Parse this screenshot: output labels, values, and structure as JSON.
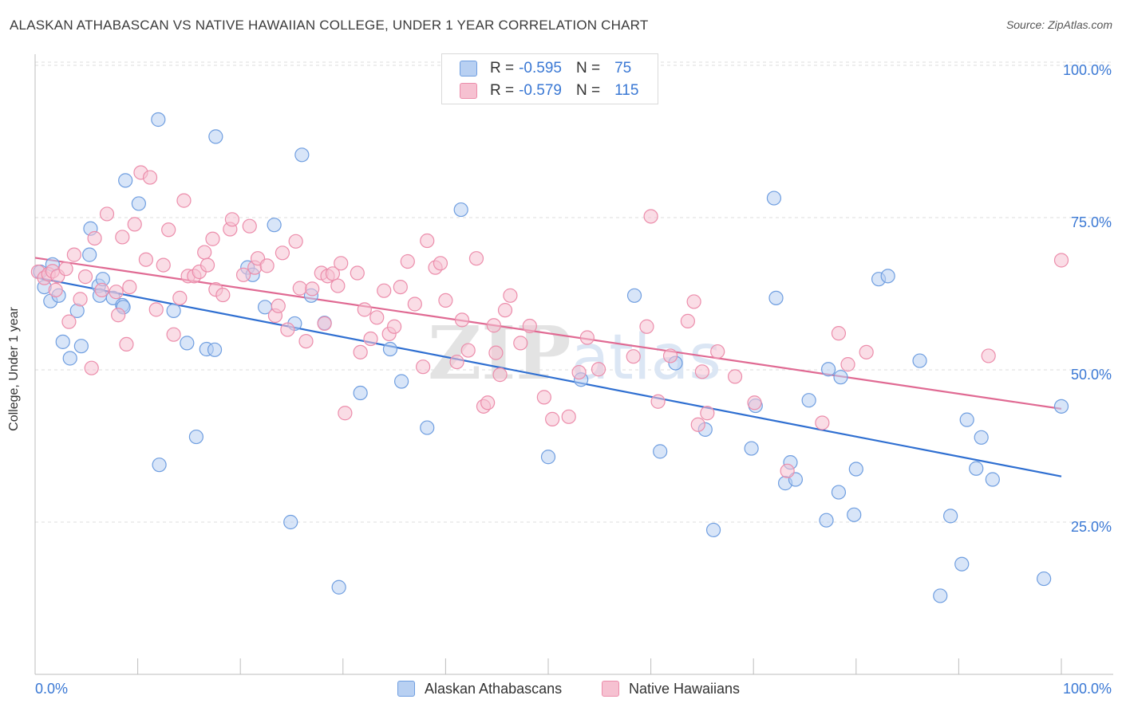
{
  "title": "ALASKAN ATHABASCAN VS NATIVE HAWAIIAN COLLEGE, UNDER 1 YEAR CORRELATION CHART",
  "source": "Source: ZipAtlas.com",
  "watermark": "ZIPatlas",
  "legend": {
    "r_label": "R =",
    "n_label": "N =",
    "rows": [
      {
        "r": "-0.595",
        "n": "75"
      },
      {
        "r": "-0.579",
        "n": "115"
      }
    ]
  },
  "colors": {
    "blue_fill": "#b8d0f2",
    "blue_stroke": "#6f9ee0",
    "blue_line": "#2f6fd1",
    "pink_fill": "#f6c1d1",
    "pink_stroke": "#ec8dab",
    "pink_line": "#e06a93",
    "tick_text": "#3a78d4",
    "grid": "#dcdcdc"
  },
  "chart_data": {
    "type": "scatter",
    "title": "ALASKAN ATHABASCAN VS NATIVE HAWAIIAN COLLEGE, UNDER 1 YEAR CORRELATION CHART",
    "xlabel": "",
    "ylabel": "College, Under 1 year",
    "xlim": [
      0,
      100
    ],
    "ylim": [
      0,
      102
    ],
    "x_tick_labels": [
      "0.0%",
      "100.0%"
    ],
    "y_ticks": [
      25,
      50,
      75,
      100
    ],
    "y_tick_labels": [
      "25.0%",
      "50.0%",
      "75.0%",
      "100.0%"
    ],
    "grid": true,
    "legend_position": "bottom-center",
    "series": [
      {
        "name": "Alaskan Athabascans",
        "color": "#6f9ee0",
        "trend": {
          "x": [
            0,
            100
          ],
          "y": [
            65.2,
            32.5
          ]
        },
        "points": [
          [
            0.5,
            66.1
          ],
          [
            0.9,
            63.6
          ],
          [
            1.5,
            61.3
          ],
          [
            1.7,
            67.3
          ],
          [
            2.3,
            62.2
          ],
          [
            2.7,
            54.6
          ],
          [
            3.4,
            51.9
          ],
          [
            4.1,
            59.7
          ],
          [
            4.5,
            53.9
          ],
          [
            5.3,
            68.9
          ],
          [
            5.4,
            73.2
          ],
          [
            6.2,
            63.8
          ],
          [
            6.3,
            62.2
          ],
          [
            6.6,
            64.9
          ],
          [
            7.6,
            61.8
          ],
          [
            8.5,
            60.6
          ],
          [
            8.6,
            60.3
          ],
          [
            8.8,
            81.1
          ],
          [
            10.1,
            77.3
          ],
          [
            12.0,
            91.1
          ],
          [
            12.1,
            34.4
          ],
          [
            13.5,
            59.7
          ],
          [
            14.8,
            54.4
          ],
          [
            15.7,
            39.0
          ],
          [
            16.7,
            53.4
          ],
          [
            17.5,
            53.3
          ],
          [
            17.6,
            88.3
          ],
          [
            20.7,
            66.8
          ],
          [
            21.2,
            65.6
          ],
          [
            22.4,
            60.3
          ],
          [
            23.3,
            73.8
          ],
          [
            24.9,
            25.0
          ],
          [
            25.3,
            57.6
          ],
          [
            26.0,
            85.3
          ],
          [
            26.9,
            62.2
          ],
          [
            28.2,
            57.7
          ],
          [
            29.6,
            14.3
          ],
          [
            31.7,
            46.2
          ],
          [
            34.6,
            53.4
          ],
          [
            35.7,
            48.1
          ],
          [
            38.2,
            40.5
          ],
          [
            41.5,
            76.3
          ],
          [
            50.0,
            35.7
          ],
          [
            53.2,
            48.4
          ],
          [
            58.4,
            62.2
          ],
          [
            60.9,
            36.6
          ],
          [
            62.4,
            51.1
          ],
          [
            65.3,
            40.2
          ],
          [
            66.1,
            23.7
          ],
          [
            69.8,
            37.1
          ],
          [
            70.2,
            44.1
          ],
          [
            72.0,
            78.2
          ],
          [
            72.2,
            61.8
          ],
          [
            73.1,
            31.4
          ],
          [
            73.6,
            34.8
          ],
          [
            74.1,
            32.0
          ],
          [
            75.4,
            45.0
          ],
          [
            77.1,
            25.3
          ],
          [
            77.3,
            50.1
          ],
          [
            78.3,
            29.9
          ],
          [
            78.5,
            48.8
          ],
          [
            79.8,
            26.2
          ],
          [
            80.0,
            33.7
          ],
          [
            82.2,
            64.9
          ],
          [
            83.1,
            65.4
          ],
          [
            86.2,
            51.5
          ],
          [
            88.2,
            12.9
          ],
          [
            89.2,
            26.0
          ],
          [
            90.3,
            18.1
          ],
          [
            90.8,
            41.8
          ],
          [
            91.7,
            33.8
          ],
          [
            92.2,
            38.9
          ],
          [
            93.3,
            32.0
          ],
          [
            98.3,
            15.7
          ],
          [
            100.0,
            44.0
          ]
        ]
      },
      {
        "name": "Native Hawaiians",
        "color": "#ec8dab",
        "trend": {
          "x": [
            0,
            100
          ],
          "y": [
            68.4,
            43.6
          ]
        },
        "points": [
          [
            0.3,
            66.1
          ],
          [
            0.9,
            65.1
          ],
          [
            1.3,
            65.7
          ],
          [
            1.7,
            66.2
          ],
          [
            2.0,
            63.1
          ],
          [
            2.2,
            65.4
          ],
          [
            3.0,
            66.6
          ],
          [
            3.3,
            57.9
          ],
          [
            3.8,
            68.9
          ],
          [
            4.4,
            61.6
          ],
          [
            4.9,
            65.3
          ],
          [
            5.5,
            50.3
          ],
          [
            5.8,
            71.6
          ],
          [
            6.5,
            63.1
          ],
          [
            7.0,
            75.6
          ],
          [
            7.9,
            62.8
          ],
          [
            8.1,
            59.0
          ],
          [
            8.5,
            71.8
          ],
          [
            8.9,
            54.2
          ],
          [
            9.2,
            63.6
          ],
          [
            9.7,
            73.9
          ],
          [
            10.3,
            82.4
          ],
          [
            10.8,
            68.1
          ],
          [
            11.2,
            81.6
          ],
          [
            11.8,
            59.9
          ],
          [
            12.5,
            67.2
          ],
          [
            13.0,
            73.0
          ],
          [
            13.5,
            55.8
          ],
          [
            14.1,
            61.8
          ],
          [
            14.5,
            77.8
          ],
          [
            14.9,
            65.4
          ],
          [
            15.5,
            65.4
          ],
          [
            16.0,
            66.1
          ],
          [
            16.5,
            69.3
          ],
          [
            16.8,
            67.2
          ],
          [
            17.3,
            71.5
          ],
          [
            17.6,
            63.2
          ],
          [
            18.3,
            62.3
          ],
          [
            19.0,
            73.1
          ],
          [
            19.2,
            74.7
          ],
          [
            20.3,
            65.6
          ],
          [
            20.9,
            73.6
          ],
          [
            21.4,
            66.8
          ],
          [
            21.7,
            68.3
          ],
          [
            22.6,
            67.1
          ],
          [
            23.4,
            58.9
          ],
          [
            23.7,
            60.5
          ],
          [
            24.1,
            69.2
          ],
          [
            24.6,
            56.6
          ],
          [
            25.4,
            71.1
          ],
          [
            25.8,
            63.4
          ],
          [
            26.4,
            54.7
          ],
          [
            27.0,
            63.3
          ],
          [
            27.9,
            65.9
          ],
          [
            28.2,
            57.6
          ],
          [
            28.5,
            65.4
          ],
          [
            29.0,
            65.8
          ],
          [
            29.5,
            63.8
          ],
          [
            29.8,
            67.5
          ],
          [
            30.2,
            42.9
          ],
          [
            31.4,
            65.9
          ],
          [
            31.7,
            52.9
          ],
          [
            32.1,
            59.9
          ],
          [
            32.7,
            55.1
          ],
          [
            33.3,
            58.6
          ],
          [
            34.0,
            63.0
          ],
          [
            34.5,
            55.9
          ],
          [
            35.0,
            57.1
          ],
          [
            35.6,
            63.6
          ],
          [
            36.3,
            67.8
          ],
          [
            37.0,
            60.8
          ],
          [
            37.8,
            50.5
          ],
          [
            38.2,
            71.2
          ],
          [
            39.0,
            66.8
          ],
          [
            39.5,
            67.5
          ],
          [
            40.0,
            61.4
          ],
          [
            41.1,
            51.3
          ],
          [
            41.6,
            58.2
          ],
          [
            42.2,
            53.2
          ],
          [
            43.0,
            68.3
          ],
          [
            43.7,
            44.0
          ],
          [
            44.1,
            44.6
          ],
          [
            44.7,
            57.3
          ],
          [
            44.9,
            52.8
          ],
          [
            45.3,
            49.2
          ],
          [
            45.8,
            59.8
          ],
          [
            46.3,
            62.2
          ],
          [
            47.3,
            54.4
          ],
          [
            48.2,
            57.2
          ],
          [
            49.6,
            45.5
          ],
          [
            50.4,
            41.9
          ],
          [
            52.0,
            42.3
          ],
          [
            53.8,
            55.3
          ],
          [
            54.9,
            50.1
          ],
          [
            58.3,
            52.2
          ],
          [
            59.6,
            57.1
          ],
          [
            60.0,
            75.2
          ],
          [
            60.7,
            44.8
          ],
          [
            61.9,
            52.3
          ],
          [
            63.6,
            58.0
          ],
          [
            64.2,
            61.2
          ],
          [
            64.6,
            41.0
          ],
          [
            65.0,
            49.7
          ],
          [
            65.5,
            42.9
          ],
          [
            66.5,
            53.0
          ],
          [
            68.2,
            48.9
          ],
          [
            70.1,
            44.6
          ],
          [
            73.3,
            33.4
          ],
          [
            76.7,
            41.3
          ],
          [
            78.3,
            56.0
          ],
          [
            79.2,
            50.9
          ],
          [
            81.0,
            52.9
          ],
          [
            92.9,
            52.3
          ],
          [
            100.0,
            68.0
          ],
          [
            53.0,
            49.6
          ]
        ]
      }
    ]
  }
}
